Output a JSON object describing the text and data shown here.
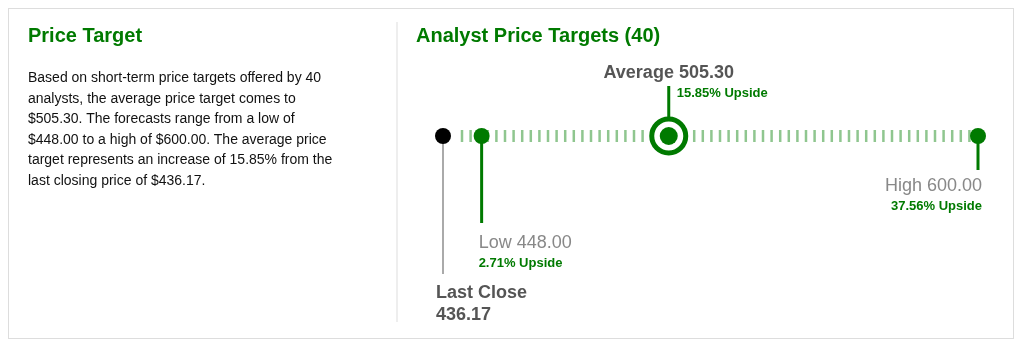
{
  "chart_data": [
    {
      "type": "other",
      "title": "Price Target",
      "annotations": [
        "Based on short-term price targets offered by 40 analysts, the average price target comes to $505.30. The forecasts range from a low of $448.00 to a high of $600.00. The average price target represents an increase of 15.85% from the last closing price of $436.17."
      ]
    },
    {
      "type": "other",
      "title": "Analyst Price Targets (40)",
      "categories": [
        "Last Close",
        "Low",
        "Average",
        "High"
      ],
      "values": [
        436.17,
        448.0,
        505.3,
        600.0
      ],
      "value_labels": [
        "436.17",
        "448.00",
        "505.30",
        "600.00"
      ],
      "colors": [
        "#000000",
        "#007a00",
        "#007a00",
        "#007a00"
      ],
      "annotations": [
        {
          "text": "2.71% Upside",
          "x": "Low"
        },
        {
          "text": "15.85% Upside",
          "x": "Average"
        },
        {
          "text": "37.56% Upside",
          "x": "High"
        }
      ]
    }
  ]
}
